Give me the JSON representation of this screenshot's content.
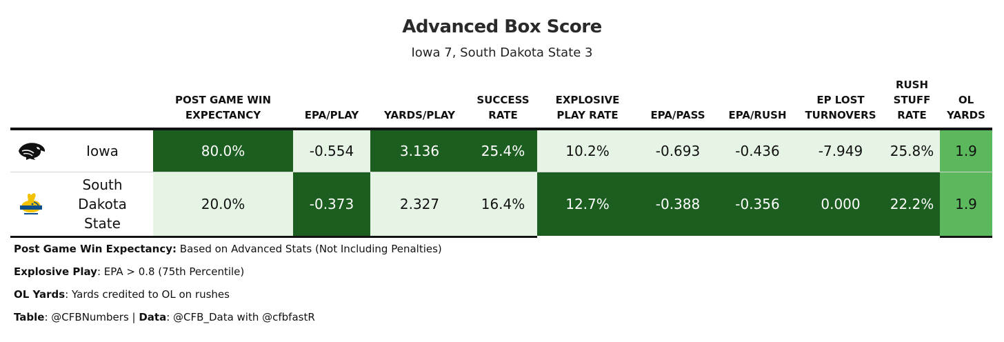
{
  "chart_data": {
    "type": "table",
    "title": "Advanced Box Score",
    "subtitle": "Iowa 7, South Dakota State 3",
    "columns": [
      {
        "key": "pgwe",
        "label": "POST GAME WIN\nEXPECTANCY"
      },
      {
        "key": "epa_play",
        "label": "EPA/PLAY"
      },
      {
        "key": "yards_play",
        "label": "YARDS/PLAY"
      },
      {
        "key": "success",
        "label": "SUCCESS\nRATE"
      },
      {
        "key": "explosive",
        "label": "EXPLOSIVE\nPLAY RATE"
      },
      {
        "key": "epa_pass",
        "label": "EPA/PASS"
      },
      {
        "key": "epa_rush",
        "label": "EPA/RUSH"
      },
      {
        "key": "ep_lost",
        "label": "EP LOST\nTURNOVERS"
      },
      {
        "key": "stuff",
        "label": "RUSH\nSTUFF\nRATE"
      },
      {
        "key": "ol",
        "label": "OL\nYARDS"
      }
    ],
    "rows": [
      {
        "team": "Iowa",
        "logo": "iowa-hawkeyes-logo",
        "values": [
          "80.0%",
          "-0.554",
          "3.136",
          "25.4%",
          "10.2%",
          "-0.693",
          "-0.436",
          "-7.949",
          "25.8%",
          "1.9"
        ]
      },
      {
        "team": "South Dakota State",
        "logo": "sdsu-jackrabbits-logo",
        "values": [
          "20.0%",
          "-0.373",
          "2.327",
          "16.4%",
          "12.7%",
          "-0.388",
          "-0.356",
          "0.000",
          "22.2%",
          "1.9"
        ]
      }
    ],
    "winner_shading": [
      [
        "win",
        "lose",
        "win",
        "win",
        "lose",
        "lose",
        "lose",
        "lose",
        "lose",
        "tie"
      ],
      [
        "lose",
        "win",
        "lose",
        "lose",
        "win",
        "win",
        "win",
        "win",
        "win",
        "tie"
      ]
    ],
    "colors": {
      "win": "#1c5e20",
      "lose": "#e6f4e6",
      "tie": "#5cb85c",
      "win_text": "#ffffff",
      "lose_text": "#111111"
    }
  },
  "footnotes": [
    {
      "bold": "Post Game Win Expectancy:",
      "text": " Based on Advanced Stats (Not Including Penalties)"
    },
    {
      "bold": "Explosive Play",
      "text": ": EPA > 0.8 (75th Percentile)"
    },
    {
      "bold": "OL Yards",
      "text": ": Yards credited to OL on rushes"
    }
  ],
  "credits": {
    "table_label": "Table",
    "table_value": ": @CFBNumbers | ",
    "data_label": "Data",
    "data_value": ": @CFB_Data with @cfbfastR"
  }
}
